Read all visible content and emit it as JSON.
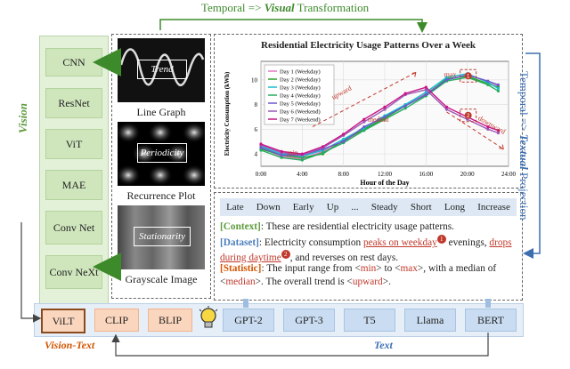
{
  "labels": {
    "temporal_visual": [
      "Temporal => ",
      "Visual",
      " Transformation"
    ],
    "temporal_textual": [
      "Temporal => ",
      "Textual",
      " Projection"
    ],
    "vision": "Vision",
    "vision_text": "Vision-Text",
    "text": "Text"
  },
  "vision_models": [
    "CNN",
    "ResNet",
    "ViT",
    "MAE",
    "Conv Net",
    "Conv NeXt"
  ],
  "transformations": [
    {
      "tag": "Trend",
      "caption": "Line Graph"
    },
    {
      "tag": "Periodicity",
      "caption": "Recurrence Plot"
    },
    {
      "tag": "Stationarity",
      "caption": "Grayscale Image"
    }
  ],
  "tokens": [
    "Late",
    "Down",
    "Early",
    "Up",
    "...",
    "Steady",
    "Short",
    "Long",
    "Increase"
  ],
  "prompt": {
    "context_key": "[Context]",
    "context": ": These are residential electricity usage patterns.",
    "dataset_key": "[Dataset]",
    "dataset_1": ": Electricity consumption ",
    "dataset_peak": "peaks on weekday",
    "dataset_2": " evenings, ",
    "dataset_drop": "drops during daytime",
    "dataset_3": ", and reverses on rest days.",
    "statistic_key": "[Statistic]",
    "stat_1": ": The input range from <",
    "stat_min": "min",
    "stat_2": "> to <",
    "stat_max": "max",
    "stat_3": ">, with a median of <",
    "stat_median": "median",
    "stat_4": ">. The overall trend is <",
    "stat_up": "upward",
    "stat_5": ">."
  },
  "badges": [
    "1",
    "2"
  ],
  "vision_text_models": [
    "ViLT",
    "CLIP",
    "BLIP"
  ],
  "text_models": [
    "GPT-2",
    "GPT-3",
    "T5",
    "Llama",
    "BERT"
  ],
  "icons": {
    "lightbulb": "lightbulb-icon"
  },
  "chart_data": {
    "type": "line",
    "title": "Residential Electricity Usage Patterns Over a Week",
    "xlabel": "Hour of the Day",
    "ylabel": "Electricity Consumption (kWh)",
    "xlim": [
      0,
      24
    ],
    "ylim": [
      3,
      11.5
    ],
    "xticks": [
      "0:00",
      "4:00",
      "8:00",
      "12:00",
      "16:00",
      "20:00",
      "24:00"
    ],
    "yticks": [
      "4",
      "6",
      "8",
      "10"
    ],
    "x": [
      0,
      2,
      4,
      6,
      8,
      10,
      12,
      14,
      16,
      18,
      20,
      22,
      23
    ],
    "series": [
      {
        "name": "Day 1 (Weekday)",
        "color": "#e377c2",
        "values": [
          4.5,
          3.8,
          3.6,
          4.2,
          5.0,
          6.0,
          7.0,
          8.0,
          8.9,
          10.0,
          10.4,
          9.9,
          9.5
        ]
      },
      {
        "name": "Day 2 (Weekday)",
        "color": "#2ca02c",
        "values": [
          4.4,
          3.9,
          3.7,
          4.0,
          5.1,
          6.0,
          6.9,
          7.9,
          8.8,
          10.1,
          10.3,
          9.7,
          9.4
        ]
      },
      {
        "name": "Day 3 (Weekday)",
        "color": "#17becf",
        "values": [
          4.6,
          4.0,
          3.8,
          4.3,
          5.2,
          6.1,
          7.1,
          8.0,
          9.0,
          10.2,
          10.5,
          9.8,
          9.3
        ]
      },
      {
        "name": "Day 4 (Weekday)",
        "color": "#27ae60",
        "values": [
          4.3,
          3.7,
          3.5,
          4.1,
          4.9,
          5.9,
          6.8,
          7.7,
          8.7,
          9.9,
          10.2,
          9.6,
          9.1
        ]
      },
      {
        "name": "Day 5 (Weekday)",
        "color": "#6a5acd",
        "values": [
          4.5,
          3.9,
          3.9,
          4.4,
          5.0,
          6.2,
          7.0,
          7.9,
          8.8,
          10.0,
          10.4,
          9.9,
          9.6
        ]
      },
      {
        "name": "Day 6 (Weekend)",
        "color": "#9b59b6",
        "values": [
          4.7,
          4.1,
          3.9,
          4.5,
          5.5,
          6.6,
          7.6,
          8.8,
          9.2,
          7.6,
          6.8,
          6.0,
          5.7
        ]
      },
      {
        "name": "Day 7 (Weekend)",
        "color": "#c71585",
        "values": [
          4.8,
          4.2,
          4.0,
          4.6,
          5.6,
          6.8,
          7.8,
          8.9,
          9.4,
          7.8,
          7.0,
          6.2,
          5.9
        ]
      }
    ],
    "annotations": [
      "max",
      "median",
      "min",
      "upward",
      "downward"
    ],
    "legend": "top-left",
    "grid": true
  }
}
